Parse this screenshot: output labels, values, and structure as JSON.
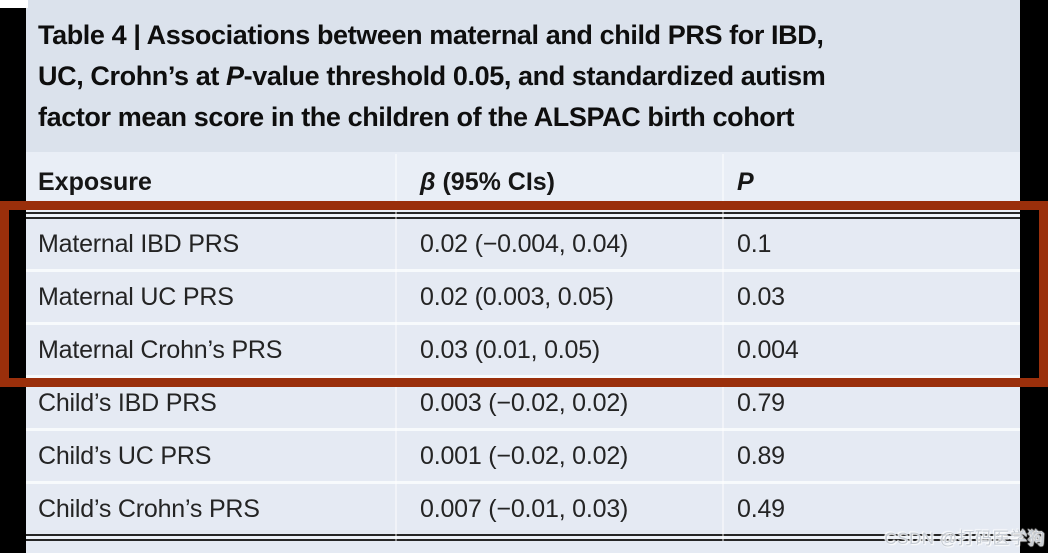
{
  "title": {
    "prefix": "Table 4 | ",
    "line1_rest": "Associations between maternal and child PRS for IBD,",
    "line2_pre": "UC, Crohn’s at ",
    "line2_italic": "P",
    "line2_post": "-value threshold 0.05, and standardized autism",
    "line3": "factor mean score in the children of the ALSPAC birth cohort"
  },
  "columns": {
    "exposure": "Exposure",
    "beta_symbol": "β",
    "beta_rest": " (95% CIs)",
    "p": "P"
  },
  "rows": [
    {
      "exposure": "Maternal IBD PRS",
      "beta": "0.02 (−0.004, 0.04)",
      "p": "0.1"
    },
    {
      "exposure": "Maternal UC PRS",
      "beta": "0.02 (0.003, 0.05)",
      "p": "0.03"
    },
    {
      "exposure": "Maternal Crohn’s PRS",
      "beta": "0.03 (0.01, 0.05)",
      "p": "0.004"
    },
    {
      "exposure": "Child’s IBD PRS",
      "beta": "0.003 (−0.02, 0.02)",
      "p": "0.79"
    },
    {
      "exposure": "Child’s UC PRS",
      "beta": "0.001 (−0.02, 0.02)",
      "p": "0.89"
    },
    {
      "exposure": "Child’s Crohn’s PRS",
      "beta": "0.007 (−0.01, 0.03)",
      "p": "0.49"
    }
  ],
  "watermark": {
    "text": "CSDN @打码医学狗"
  },
  "colors": {
    "outer_background": "#000000",
    "panel_background": "#e5eaf3",
    "title_background": "#dbe2ec",
    "header_background": "#e9eef6",
    "row_separator": "#f7fafc",
    "rule_dark": "#262626",
    "highlight_box": "#9a2f0b",
    "body_text": "#242424",
    "watermark_text": "#c6ccd4"
  },
  "chart_data": {
    "type": "table",
    "title": "Table 4 | Associations between maternal and child PRS for IBD, UC, Crohn’s at P-value threshold 0.05, and standardized autism factor mean score in the children of the ALSPAC birth cohort",
    "columns": [
      "Exposure",
      "β (95% CIs)",
      "P"
    ],
    "rows": [
      [
        "Maternal IBD PRS",
        "0.02 (−0.004, 0.04)",
        "0.1"
      ],
      [
        "Maternal UC PRS",
        "0.02 (0.003, 0.05)",
        "0.03"
      ],
      [
        "Maternal Crohn’s PRS",
        "0.03 (0.01, 0.05)",
        "0.004"
      ],
      [
        "Child’s IBD PRS",
        "0.003 (−0.02, 0.02)",
        "0.79"
      ],
      [
        "Child’s UC PRS",
        "0.001 (−0.02, 0.02)",
        "0.89"
      ],
      [
        "Child’s Crohn’s PRS",
        "0.007 (−0.01, 0.03)",
        "0.49"
      ]
    ],
    "highlighted_row_indexes": [
      0,
      1,
      2
    ],
    "highlight_style": "dark-red rectangle border drawn around first three rows, full image width"
  }
}
